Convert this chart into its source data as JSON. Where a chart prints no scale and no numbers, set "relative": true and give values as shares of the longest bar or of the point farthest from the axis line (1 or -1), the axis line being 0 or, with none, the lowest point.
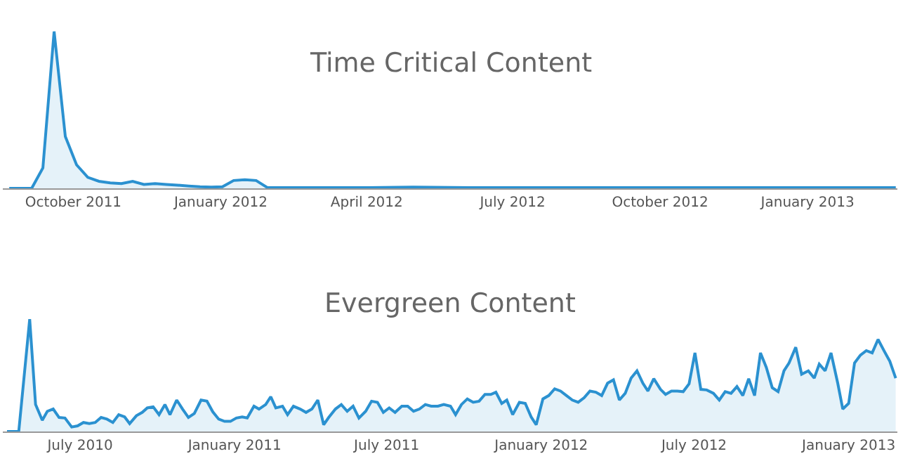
{
  "chart_data": [
    {
      "type": "area",
      "title": "Time Critical Content",
      "relative": true,
      "marker": "none",
      "line_style": "solid",
      "xlim": [
        "2011-08-18",
        "2013-02-26"
      ],
      "xticks": [
        {
          "value": "2011-10-01",
          "label": "October 2011"
        },
        {
          "value": "2012-01-01",
          "label": "January 2012"
        },
        {
          "value": "2012-04-01",
          "label": "April 2012"
        },
        {
          "value": "2012-07-01",
          "label": "July 2012"
        },
        {
          "value": "2012-10-01",
          "label": "October 2012"
        },
        {
          "value": "2013-01-01",
          "label": "January 2013"
        }
      ],
      "x": [
        "2011-08-22",
        "2011-08-29",
        "2011-09-05",
        "2011-09-12",
        "2011-09-19",
        "2011-09-26",
        "2011-10-03",
        "2011-10-10",
        "2011-10-17",
        "2011-10-24",
        "2011-10-31",
        "2011-11-07",
        "2011-11-14",
        "2011-11-21",
        "2011-11-28",
        "2011-12-05",
        "2011-12-12",
        "2011-12-19",
        "2011-12-26",
        "2012-01-02",
        "2012-01-09",
        "2012-01-16",
        "2012-01-23",
        "2012-01-30",
        "2012-03-05",
        "2012-04-02",
        "2012-04-30",
        "2012-06-04",
        "2012-07-02",
        "2012-08-06",
        "2012-09-03",
        "2012-10-01",
        "2012-11-05",
        "2012-12-03",
        "2013-01-07",
        "2013-02-04",
        "2013-02-25"
      ],
      "series": [
        {
          "color": "#2b91d0",
          "values": [
            0,
            0,
            0,
            0.13,
            1,
            0.33,
            0.15,
            0.07,
            0.045,
            0.035,
            0.03,
            0.045,
            0.025,
            0.03,
            0.025,
            0.02,
            0.015,
            0.01,
            0.008,
            0.01,
            0.05,
            0.055,
            0.05,
            0.005,
            0.005,
            0.005,
            0.008,
            0.005,
            0.005,
            0.005,
            0.005,
            0.005,
            0.005,
            0.005,
            0.005,
            0.005,
            0.005
          ]
        }
      ]
    },
    {
      "type": "area",
      "title": "Evergreen Content",
      "relative": true,
      "marker": "none",
      "line_style": "solid",
      "xlim": [
        "2010-03-31",
        "2013-02-28"
      ],
      "xticks": [
        {
          "value": "2010-07-01",
          "label": "July 2010"
        },
        {
          "value": "2011-01-01",
          "label": "January 2011"
        },
        {
          "value": "2011-07-01",
          "label": "July 2011"
        },
        {
          "value": "2012-01-01",
          "label": "January 2012"
        },
        {
          "value": "2012-07-01",
          "label": "July 2012"
        },
        {
          "value": "2013-01-01",
          "label": "January 2013"
        }
      ],
      "x": [
        "2010-04-05",
        "2010-04-19",
        "2010-05-02",
        "2010-05-09",
        "2010-05-17",
        "2010-05-23",
        "2010-05-30",
        "2010-06-06",
        "2010-06-13",
        "2010-06-21",
        "2010-06-28",
        "2010-07-05",
        "2010-07-12",
        "2010-07-19",
        "2010-07-26",
        "2010-08-02",
        "2010-08-09",
        "2010-08-16",
        "2010-08-23",
        "2010-08-29",
        "2010-09-06",
        "2010-09-13",
        "2010-09-19",
        "2010-09-26",
        "2010-10-03",
        "2010-10-10",
        "2010-10-16",
        "2010-10-24",
        "2010-10-31",
        "2010-11-07",
        "2010-11-14",
        "2010-11-22",
        "2010-11-29",
        "2010-12-06",
        "2010-12-13",
        "2010-12-20",
        "2010-12-27",
        "2011-01-03",
        "2011-01-10",
        "2011-01-16",
        "2011-01-24",
        "2011-01-30",
        "2011-02-07",
        "2011-02-13",
        "2011-02-19",
        "2011-02-27",
        "2011-03-05",
        "2011-03-12",
        "2011-03-20",
        "2011-03-27",
        "2011-04-03",
        "2011-04-10",
        "2011-04-17",
        "2011-04-23",
        "2011-05-01",
        "2011-05-08",
        "2011-05-15",
        "2011-05-22",
        "2011-05-29",
        "2011-06-06",
        "2011-06-13",
        "2011-06-20",
        "2011-06-27",
        "2011-07-04",
        "2011-07-11",
        "2011-07-19",
        "2011-07-26",
        "2011-08-02",
        "2011-08-09",
        "2011-08-16",
        "2011-08-23",
        "2011-08-31",
        "2011-09-07",
        "2011-09-15",
        "2011-09-21",
        "2011-09-28",
        "2011-10-05",
        "2011-10-12",
        "2011-10-19",
        "2011-10-26",
        "2011-11-02",
        "2011-11-08",
        "2011-11-15",
        "2011-11-21",
        "2011-11-28",
        "2011-12-06",
        "2011-12-13",
        "2011-12-20",
        "2011-12-26",
        "2012-01-03",
        "2012-01-10",
        "2012-01-17",
        "2012-01-24",
        "2012-01-31",
        "2012-02-07",
        "2012-02-14",
        "2012-02-21",
        "2012-02-28",
        "2012-03-06",
        "2012-03-13",
        "2012-03-20",
        "2012-03-27",
        "2012-04-03",
        "2012-04-10",
        "2012-04-17",
        "2012-04-24",
        "2012-05-01",
        "2012-05-07",
        "2012-05-14",
        "2012-05-22",
        "2012-05-28",
        "2012-06-04",
        "2012-06-11",
        "2012-06-18",
        "2012-06-25",
        "2012-07-02",
        "2012-07-09",
        "2012-07-16",
        "2012-07-24",
        "2012-07-31",
        "2012-08-07",
        "2012-08-14",
        "2012-08-21",
        "2012-08-28",
        "2012-09-04",
        "2012-09-11",
        "2012-09-18",
        "2012-09-25",
        "2012-10-02",
        "2012-10-09",
        "2012-10-16",
        "2012-10-22",
        "2012-10-30",
        "2012-11-06",
        "2012-11-14",
        "2012-11-21",
        "2012-11-27",
        "2012-12-04",
        "2012-12-11",
        "2012-12-19",
        "2012-12-25",
        "2013-01-01",
        "2013-01-08",
        "2013-01-15",
        "2013-01-22",
        "2013-01-29",
        "2013-02-05",
        "2013-02-12",
        "2013-02-19",
        "2013-02-26"
      ],
      "series": [
        {
          "color": "#2b91d0",
          "values": [
            0,
            0,
            1,
            0.24,
            0.1,
            0.18,
            0.2,
            0.125,
            0.12,
            0.04,
            0.05,
            0.08,
            0.07,
            0.08,
            0.125,
            0.11,
            0.08,
            0.15,
            0.13,
            0.07,
            0.14,
            0.17,
            0.21,
            0.22,
            0.15,
            0.24,
            0.15,
            0.28,
            0.2,
            0.125,
            0.16,
            0.28,
            0.27,
            0.175,
            0.11,
            0.09,
            0.09,
            0.12,
            0.13,
            0.12,
            0.225,
            0.2,
            0.24,
            0.31,
            0.21,
            0.225,
            0.15,
            0.225,
            0.2,
            0.17,
            0.2,
            0.28,
            0.06,
            0.125,
            0.2,
            0.24,
            0.18,
            0.225,
            0.12,
            0.18,
            0.27,
            0.26,
            0.17,
            0.21,
            0.17,
            0.225,
            0.225,
            0.18,
            0.2,
            0.24,
            0.225,
            0.225,
            0.24,
            0.225,
            0.15,
            0.24,
            0.29,
            0.26,
            0.27,
            0.33,
            0.33,
            0.35,
            0.25,
            0.28,
            0.15,
            0.26,
            0.25,
            0.13,
            0.06,
            0.29,
            0.32,
            0.38,
            0.36,
            0.32,
            0.28,
            0.26,
            0.3,
            0.36,
            0.35,
            0.32,
            0.43,
            0.46,
            0.28,
            0.34,
            0.475,
            0.54,
            0.43,
            0.36,
            0.47,
            0.375,
            0.33,
            0.36,
            0.36,
            0.355,
            0.425,
            0.7,
            0.375,
            0.37,
            0.34,
            0.28,
            0.355,
            0.34,
            0.4,
            0.32,
            0.47,
            0.32,
            0.7,
            0.57,
            0.39,
            0.355,
            0.54,
            0.61,
            0.75,
            0.51,
            0.54,
            0.475,
            0.6,
            0.54,
            0.7,
            0.43,
            0.2,
            0.25,
            0.61,
            0.68,
            0.72,
            0.7,
            0.82,
            0.72,
            0.625,
            0.475
          ]
        }
      ]
    }
  ]
}
